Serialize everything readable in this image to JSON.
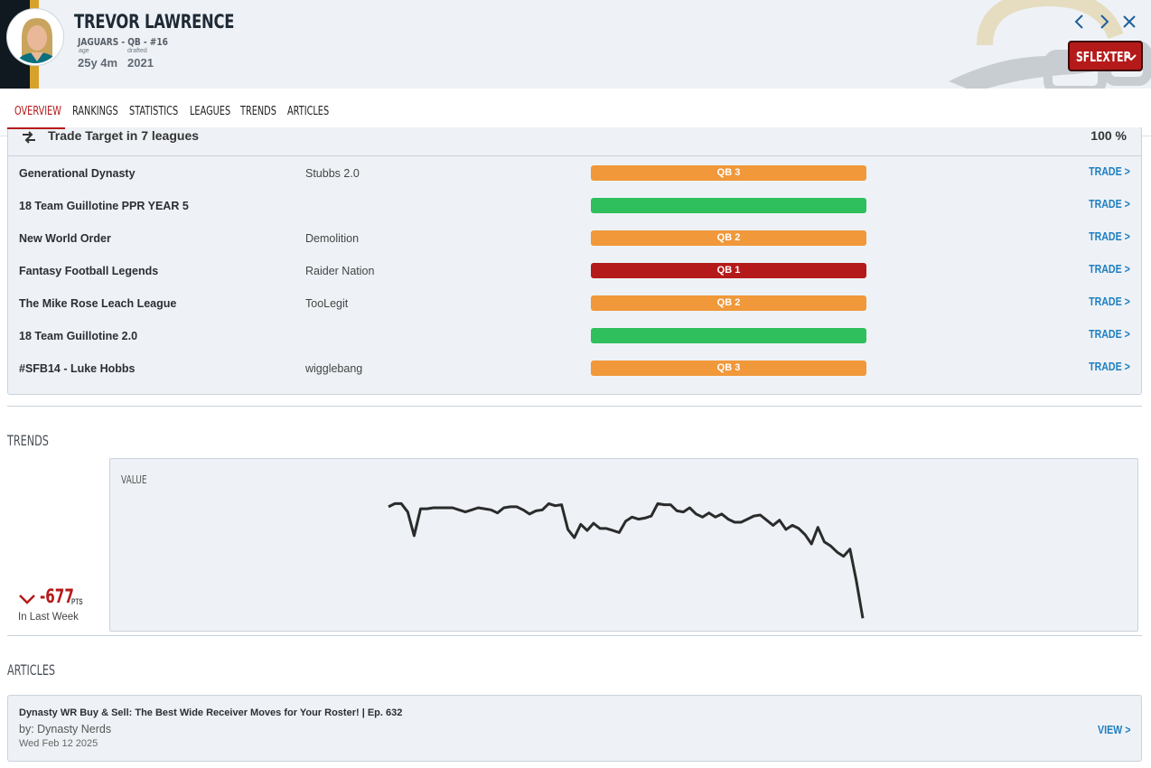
{
  "player": {
    "name": "TREVOR LAWRENCE",
    "subtitle": "JAGUARS - QB - #16",
    "age_label": "age",
    "age_value": "25y 4m",
    "drafted_label": "drafted",
    "drafted_value": "2021"
  },
  "format_button": {
    "label": "SFLEXTEP"
  },
  "tabs": [
    {
      "label": "OVERVIEW",
      "active": true
    },
    {
      "label": "RANKINGS"
    },
    {
      "label": "STATISTICS"
    },
    {
      "label": "LEAGUES"
    },
    {
      "label": "TRENDS"
    },
    {
      "label": "ARTICLES"
    }
  ],
  "trade_target": {
    "header": "Trade Target in 7 leagues",
    "percent": "100 %",
    "rows": [
      {
        "league": "Generational Dynasty",
        "team": "Stubbs 2.0",
        "badge": "QB 3",
        "badge_color": "#f0983a",
        "action": "TRADE >"
      },
      {
        "league": "18 Team Guillotine PPR YEAR 5",
        "team": "",
        "badge": "",
        "badge_color": "#2fbf5c",
        "action": "TRADE >"
      },
      {
        "league": "New World Order",
        "team": "Demolition",
        "badge": "QB 2",
        "badge_color": "#f0983a",
        "action": "TRADE >"
      },
      {
        "league": "Fantasy Football Legends",
        "team": "Raider Nation",
        "badge": "QB 1",
        "badge_color": "#b51a1a",
        "action": "TRADE >"
      },
      {
        "league": "The Mike Rose Leach League",
        "team": "TooLegit",
        "badge": "QB 2",
        "badge_color": "#f0983a",
        "action": "TRADE >"
      },
      {
        "league": "18 Team Guillotine 2.0",
        "team": "",
        "badge": "",
        "badge_color": "#2fbf5c",
        "action": "TRADE >"
      },
      {
        "league": "#SFB14 - Luke Hobbs",
        "team": "wigglebang",
        "badge": "QB 3",
        "badge_color": "#f0983a",
        "action": "TRADE >"
      }
    ]
  },
  "trends": {
    "section_title": "TRENDS",
    "delta_value": "-677",
    "delta_unit": "PTS",
    "delta_caption": "In Last Week",
    "chart_title": "VALUE"
  },
  "chart_data": {
    "type": "line",
    "title": "VALUE",
    "xlabel": "",
    "ylabel": "",
    "grid": false,
    "ylim": [
      0,
      140
    ],
    "series": [
      {
        "values": [
          120,
          123,
          123,
          115,
          92,
          118,
          118,
          119,
          119,
          119,
          119,
          117,
          115,
          117,
          119,
          118,
          117,
          114,
          119,
          120,
          120,
          117,
          113,
          116,
          117,
          123,
          121,
          122,
          98,
          90,
          103,
          97,
          104,
          99,
          99,
          97,
          95,
          106,
          110,
          108,
          109,
          111,
          123,
          122,
          122,
          116,
          115,
          119,
          113,
          110,
          114,
          110,
          113,
          108,
          105,
          105,
          108,
          111,
          112,
          107,
          102,
          107,
          98,
          102,
          99,
          93,
          84,
          100,
          86,
          82,
          76,
          72,
          79,
          48,
          12
        ]
      }
    ]
  },
  "articles": {
    "section_title": "ARTICLES",
    "items": [
      {
        "title": "Dynasty WR Buy & Sell: The Best Wide Receiver Moves for Your Roster! | Ep. 632",
        "author": "by: Dynasty Nerds",
        "date": "Wed Feb 12 2025",
        "action": "VIEW >"
      }
    ]
  },
  "colors": {
    "accent": "#b51a1a",
    "link": "#1f7fc1",
    "panel": "#eef2f6",
    "team_dark": "#101820",
    "team_gold": "#d7a22a"
  }
}
